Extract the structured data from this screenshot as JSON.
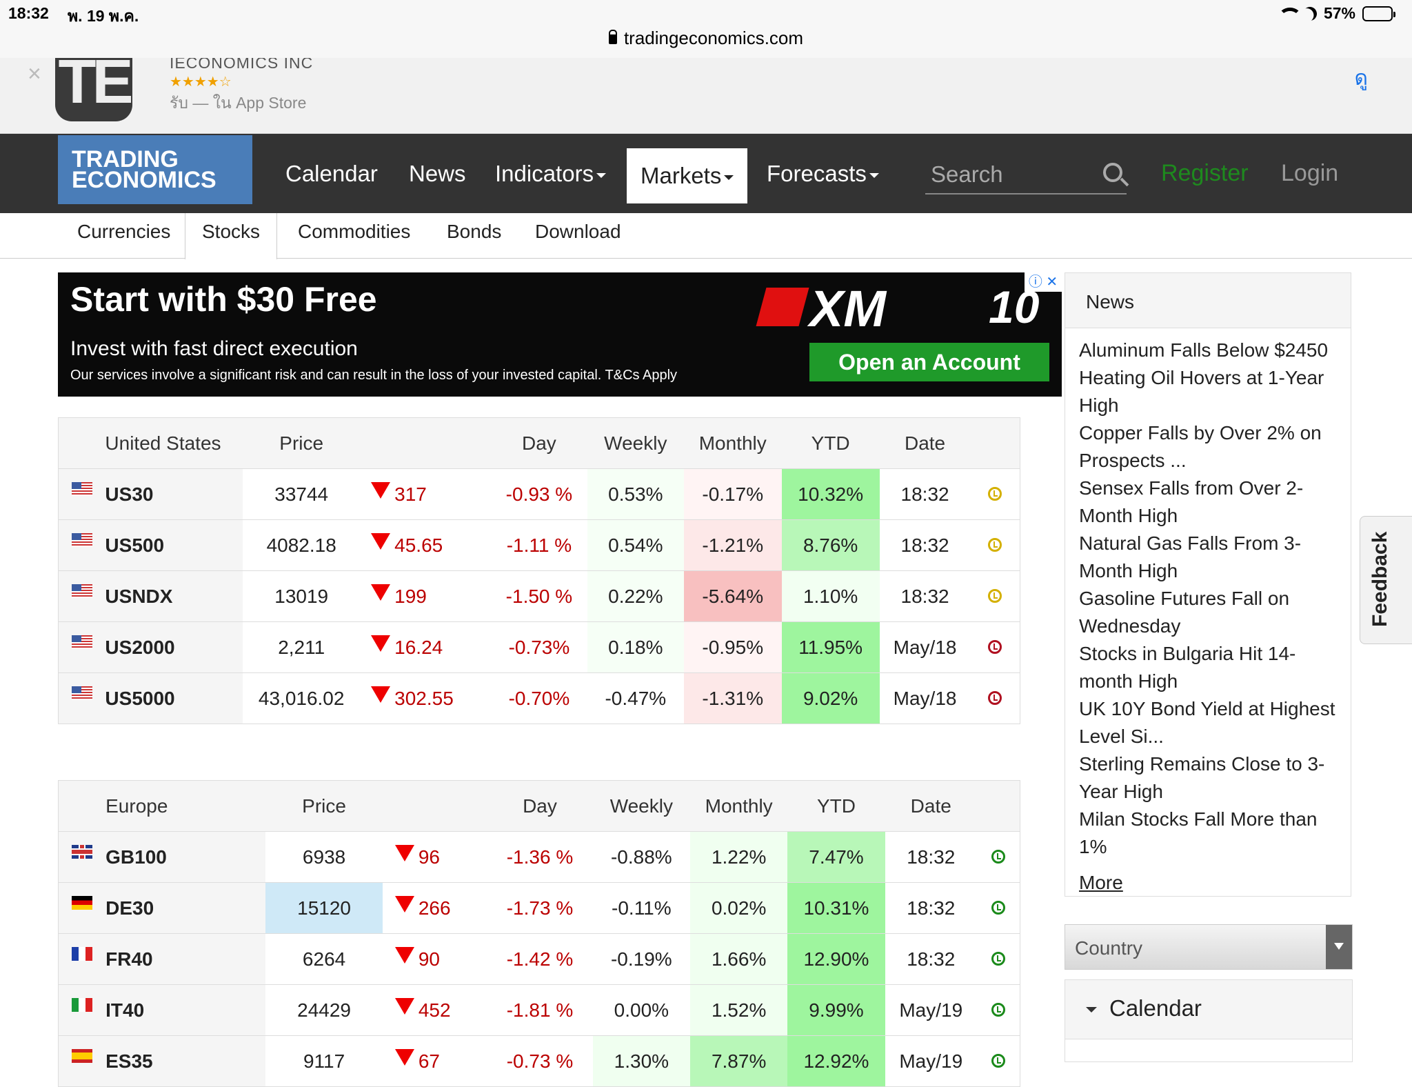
{
  "status_bar": {
    "time": "18:32",
    "date": "พ. 19 พ.ค.",
    "battery": "57%",
    "battery_level": 0.57
  },
  "url": "tradingeconomics.com",
  "app_banner": {
    "company": "IECONOMICS INC",
    "stars": "★★★★☆",
    "get_text": "รับ — ใน App Store",
    "open_label": "ดู",
    "icon_letters": "TE"
  },
  "nav": {
    "logo_line1": "TRADING",
    "logo_line2": "ECONOMICS",
    "items": [
      "Calendar",
      "News",
      "Indicators",
      "Markets",
      "Forecasts"
    ],
    "search_placeholder": "Search",
    "register": "Register",
    "login": "Login"
  },
  "subnav": [
    "Currencies",
    "Stocks",
    "Commodities",
    "Bonds",
    "Download"
  ],
  "ad": {
    "headline": "Start with $30 Free",
    "sub": "Invest with fast direct execution",
    "disclaimer": "Our services involve a significant risk and can result in the loss of your invested capital. T&Cs Apply",
    "brand": "XM",
    "badge": "10",
    "cta": "Open an Account"
  },
  "us_table": {
    "region": "United States",
    "headers": [
      "Price",
      "Day",
      "Weekly",
      "Monthly",
      "YTD",
      "Date"
    ],
    "rows": [
      {
        "sym": "US30",
        "price": "33744",
        "chg": "317",
        "day": "-0.93 %",
        "weekly": "0.53%",
        "monthly": "-0.17%",
        "ytd": "10.32%",
        "date": "18:32",
        "clock": "#d4b000"
      },
      {
        "sym": "US500",
        "price": "4082.18",
        "chg": "45.65",
        "day": "-1.11 %",
        "weekly": "0.54%",
        "monthly": "-1.21%",
        "ytd": "8.76%",
        "date": "18:32",
        "clock": "#d4b000"
      },
      {
        "sym": "USNDX",
        "price": "13019",
        "chg": "199",
        "day": "-1.50 %",
        "weekly": "0.22%",
        "monthly": "-5.64%",
        "ytd": "1.10%",
        "date": "18:32",
        "clock": "#d4b000"
      },
      {
        "sym": "US2000",
        "price": "2,211",
        "chg": "16.24",
        "day": "-0.73%",
        "weekly": "0.18%",
        "monthly": "-0.95%",
        "ytd": "11.95%",
        "date": "May/18",
        "clock": "#b01020"
      },
      {
        "sym": "US5000",
        "price": "43,016.02",
        "chg": "302.55",
        "day": "-0.70%",
        "weekly": "-0.47%",
        "monthly": "-1.31%",
        "ytd": "9.02%",
        "date": "May/18",
        "clock": "#b01020"
      }
    ]
  },
  "eu_table": {
    "region": "Europe",
    "headers": [
      "Price",
      "Day",
      "Weekly",
      "Monthly",
      "YTD",
      "Date"
    ],
    "rows": [
      {
        "sym": "GB100",
        "flag": "gb",
        "price": "6938",
        "chg": "96",
        "day": "-1.36 %",
        "weekly": "-0.88%",
        "monthly": "1.22%",
        "ytd": "7.47%",
        "date": "18:32",
        "clock": "#1a8a1a"
      },
      {
        "sym": "DE30",
        "flag": "de",
        "price": "15120",
        "chg": "266",
        "day": "-1.73 %",
        "weekly": "-0.11%",
        "monthly": "0.02%",
        "ytd": "10.31%",
        "date": "18:32",
        "clock": "#1a8a1a"
      },
      {
        "sym": "FR40",
        "flag": "fr",
        "price": "6264",
        "chg": "90",
        "day": "-1.42 %",
        "weekly": "-0.19%",
        "monthly": "1.66%",
        "ytd": "12.90%",
        "date": "18:32",
        "clock": "#1a8a1a"
      },
      {
        "sym": "IT40",
        "flag": "it",
        "price": "24429",
        "chg": "452",
        "day": "-1.81 %",
        "weekly": "0.00%",
        "monthly": "1.52%",
        "ytd": "9.99%",
        "date": "May/19",
        "clock": "#1a8a1a"
      },
      {
        "sym": "ES35",
        "flag": "es",
        "price": "9117",
        "chg": "67",
        "day": "-0.73 %",
        "weekly": "1.30%",
        "monthly": "7.87%",
        "ytd": "12.92%",
        "date": "May/19",
        "clock": "#1a8a1a"
      }
    ]
  },
  "news": {
    "title": "News",
    "items": [
      "Aluminum Falls Below $2450",
      "Heating Oil Hovers at 1-Year High",
      "Copper Falls by Over 2% on Prospects ...",
      "Sensex Falls from Over 2-Month High",
      "Natural Gas Falls From 3-Month High",
      "Gasoline Futures Fall on Wednesday",
      "Stocks in Bulgaria Hit 14-month High",
      "UK 10Y Bond Yield at Highest Level Si...",
      "Sterling Remains Close to 3-Year High",
      "Milan Stocks Fall More than 1%"
    ],
    "more": "More"
  },
  "country_select": "Country",
  "calendar_label": "Calendar",
  "feedback": "Feedback"
}
